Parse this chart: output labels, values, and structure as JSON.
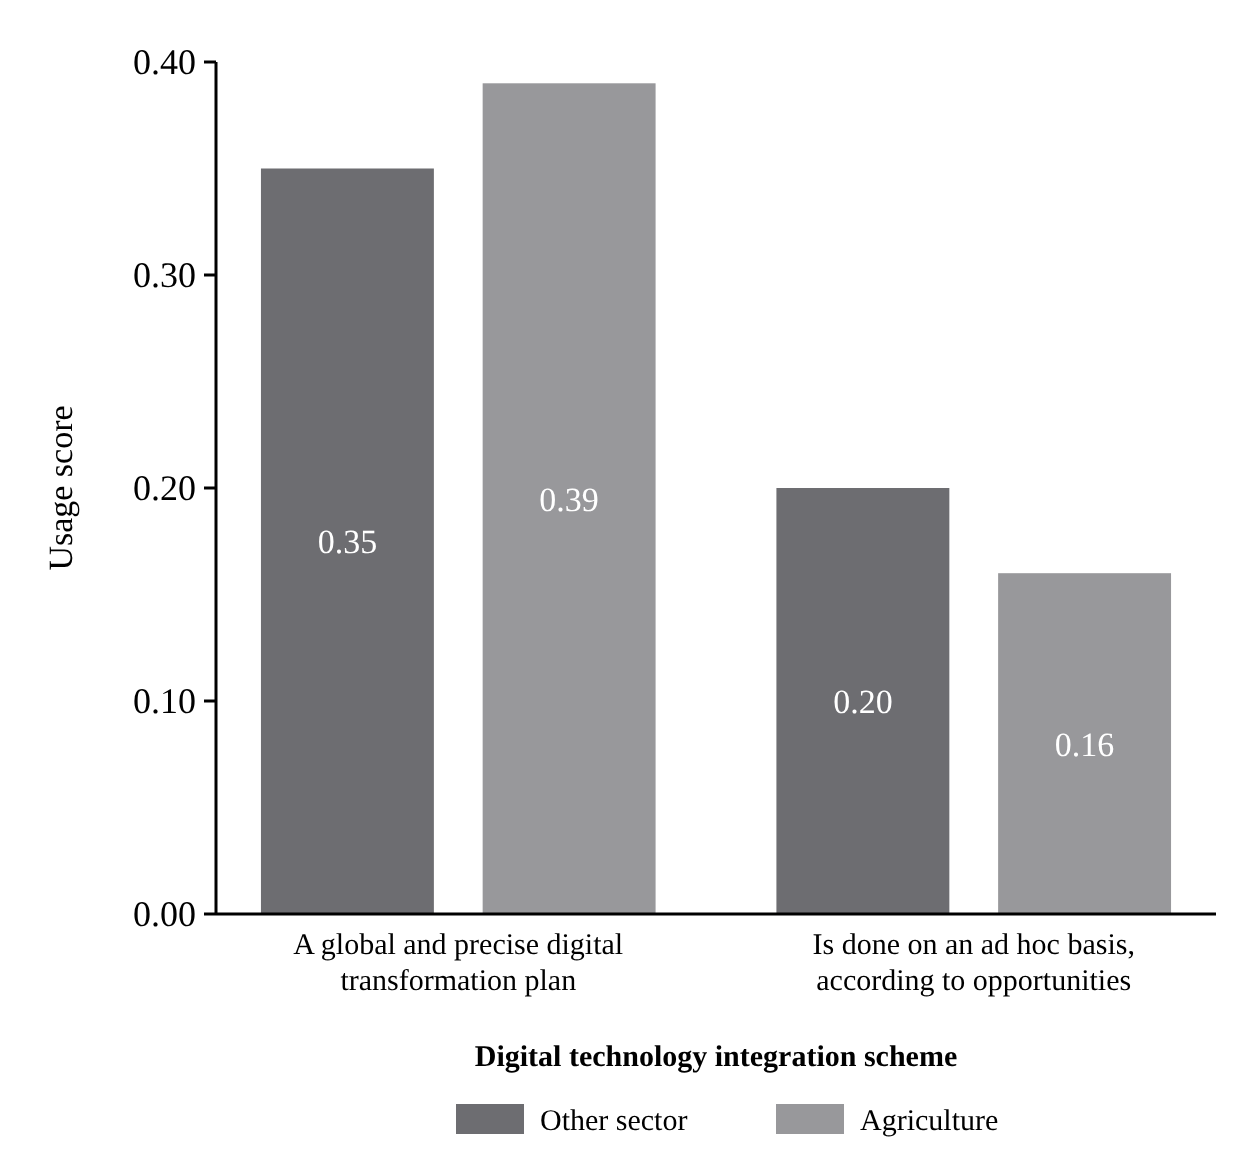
{
  "chart_data": {
    "type": "bar",
    "xlabel": "Digital technology integration scheme",
    "ylabel": "Usage score",
    "categories": [
      "A global and precise digital transformation plan",
      "Is done on an ad hoc basis, according to opportunities"
    ],
    "series": [
      {
        "name": "Other sector",
        "color": "#6d6d71",
        "values": [
          0.35,
          0.2
        ],
        "value_labels": [
          "0.35",
          "0.20"
        ]
      },
      {
        "name": "Agriculture",
        "color": "#98989b",
        "values": [
          0.39,
          0.16
        ],
        "value_labels": [
          "0.39",
          "0.16"
        ]
      }
    ],
    "ylim": [
      0,
      0.4
    ],
    "yticks": [
      "0.00",
      "0.10",
      "0.20",
      "0.30",
      "0.40"
    ],
    "legend": "bottom",
    "grid": false
  }
}
